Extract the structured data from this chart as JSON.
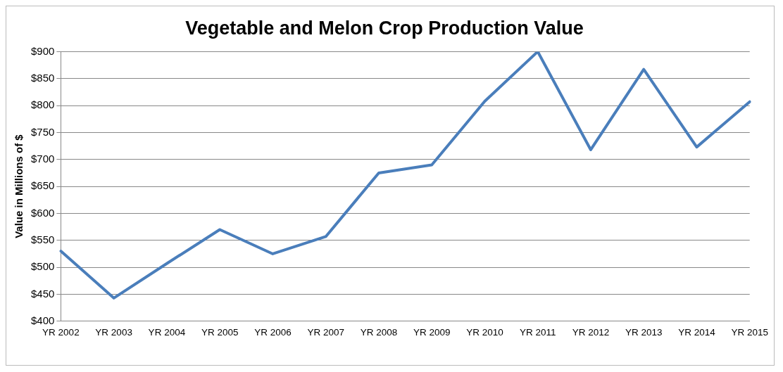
{
  "chart_data": {
    "type": "line",
    "title": "Vegetable and Melon Crop Production Value",
    "ylabel": "Value in Millions of $",
    "categories": [
      "YR 2002",
      "YR 2003",
      "YR 2004",
      "YR 2005",
      "YR 2006",
      "YR 2007",
      "YR 2008",
      "YR 2009",
      "YR 2010",
      "YR 2011",
      "YR 2012",
      "YR 2013",
      "YR 2014",
      "YR 2015"
    ],
    "series": [
      {
        "color": "#4a7ebb",
        "values": [
          530,
          443,
          507,
          570,
          525,
          557,
          675,
          690,
          808,
          900,
          718,
          867,
          723,
          807
        ]
      }
    ],
    "ylim": [
      400,
      900
    ],
    "yticks": [
      {
        "value": 400,
        "label": "$400"
      },
      {
        "value": 450,
        "label": "$450"
      },
      {
        "value": 500,
        "label": "$500"
      },
      {
        "value": 550,
        "label": "$550"
      },
      {
        "value": 600,
        "label": "$600"
      },
      {
        "value": 650,
        "label": "$650"
      },
      {
        "value": 700,
        "label": "$700"
      },
      {
        "value": 750,
        "label": "$750"
      },
      {
        "value": 800,
        "label": "$800"
      },
      {
        "value": 850,
        "label": "$850"
      },
      {
        "value": 900,
        "label": "$900"
      }
    ],
    "grid": "y",
    "legend": false,
    "marker": "none",
    "line_style": "solid"
  }
}
